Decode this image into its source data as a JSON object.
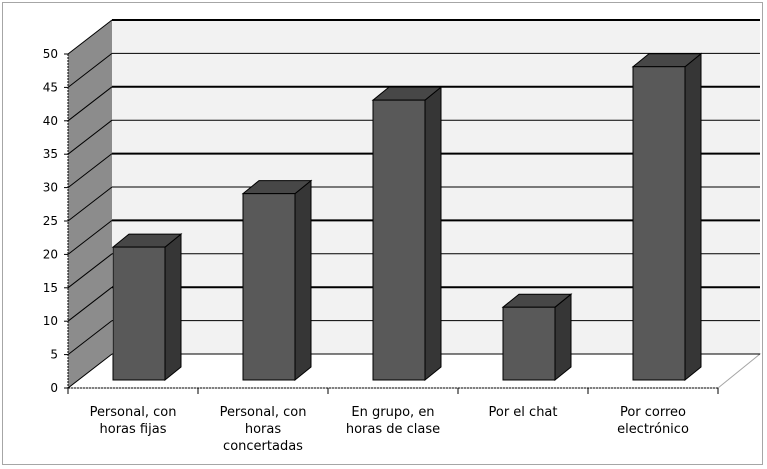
{
  "chart_data": {
    "type": "bar",
    "title": "",
    "xlabel": "",
    "ylabel": "",
    "ylim": [
      0,
      50
    ],
    "yticks": [
      0,
      5,
      10,
      15,
      20,
      25,
      30,
      35,
      40,
      45,
      50
    ],
    "categories": [
      [
        "Personal, con",
        "horas fijas"
      ],
      [
        "Personal, con",
        "horas",
        "concertadas"
      ],
      [
        "En grupo, en",
        "horas de clase"
      ],
      [
        "Por el chat"
      ],
      [
        "Por correo",
        "electrónico"
      ]
    ],
    "values": [
      19,
      27,
      41,
      10,
      46
    ],
    "grid": true,
    "legend": "none",
    "colors": {
      "bar_front": "#595959",
      "bar_side": "#363636",
      "bar_top": "#474747",
      "back_wall": "#f2f2f2",
      "side_wall": "#8c8c8c",
      "gridline": "#000000"
    }
  }
}
